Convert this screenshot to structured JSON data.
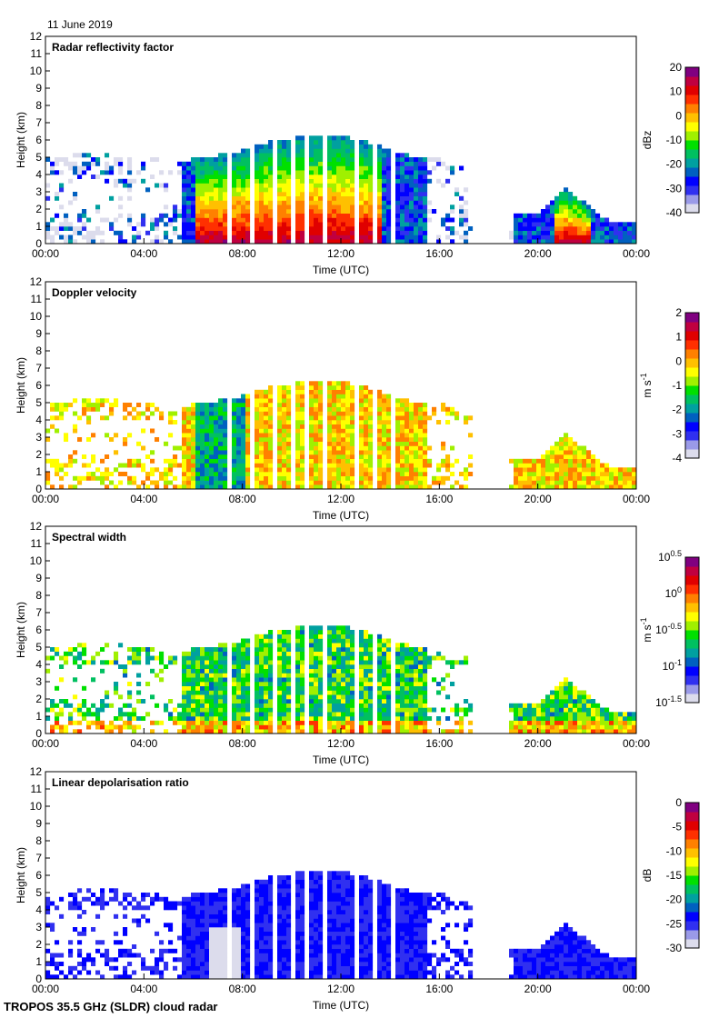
{
  "date": "11 June 2019",
  "footer": "TROPOS 35.5 GHz (SLDR) cloud radar",
  "chart_data": [
    {
      "type": "heatmap",
      "title": "Radar reflectivity factor",
      "xlabel": "Time (UTC)",
      "ylabel": "Height (km)",
      "xlim": [
        "00:00",
        "24:00"
      ],
      "ylim": [
        0,
        12
      ],
      "xticks": [
        "00:00",
        "04:00",
        "08:00",
        "12:00",
        "16:00",
        "20:00",
        "00:00"
      ],
      "yticks": [
        "0",
        "1",
        "2",
        "3",
        "4",
        "5",
        "6",
        "7",
        "8",
        "9",
        "10",
        "11",
        "12"
      ],
      "colorbar": {
        "label": "dBz",
        "ticks": [
          "20",
          "10",
          "0",
          "-10",
          "-20",
          "-30",
          "-40"
        ],
        "range": [
          -40,
          20
        ]
      }
    },
    {
      "type": "heatmap",
      "title": "Doppler velocity",
      "xlabel": "Time (UTC)",
      "ylabel": "Height (km)",
      "xlim": [
        "00:00",
        "24:00"
      ],
      "ylim": [
        0,
        12
      ],
      "xticks": [
        "00:00",
        "04:00",
        "08:00",
        "12:00",
        "16:00",
        "20:00",
        "00:00"
      ],
      "yticks": [
        "0",
        "1",
        "2",
        "3",
        "4",
        "5",
        "6",
        "7",
        "8",
        "9",
        "10",
        "11",
        "12"
      ],
      "colorbar": {
        "label": "m s-1",
        "ticks": [
          "2",
          "1",
          "0",
          "-1",
          "-2",
          "-3",
          "-4"
        ],
        "range": [
          -4,
          2
        ]
      }
    },
    {
      "type": "heatmap",
      "title": "Spectral width",
      "xlabel": "Time (UTC)",
      "ylabel": "Height (km)",
      "xlim": [
        "00:00",
        "24:00"
      ],
      "ylim": [
        0,
        12
      ],
      "xticks": [
        "00:00",
        "04:00",
        "08:00",
        "12:00",
        "16:00",
        "20:00",
        "00:00"
      ],
      "yticks": [
        "0",
        "1",
        "2",
        "3",
        "4",
        "5",
        "6",
        "7",
        "8",
        "9",
        "10",
        "11",
        "12"
      ],
      "colorbar": {
        "label": "m s-1",
        "ticks": [
          "10^0.5",
          "10^0",
          "10^-0.5",
          "10^-1",
          "10^-1.5"
        ],
        "range": [
          -1.5,
          0.5
        ],
        "scale": "log"
      }
    },
    {
      "type": "heatmap",
      "title": "Linear depolarisation ratio",
      "xlabel": "Time (UTC)",
      "ylabel": "Height (km)",
      "xlim": [
        "00:00",
        "24:00"
      ],
      "ylim": [
        0,
        12
      ],
      "xticks": [
        "00:00",
        "04:00",
        "08:00",
        "12:00",
        "16:00",
        "20:00",
        "00:00"
      ],
      "yticks": [
        "0",
        "1",
        "2",
        "3",
        "4",
        "5",
        "6",
        "7",
        "8",
        "9",
        "10",
        "11",
        "12"
      ],
      "colorbar": {
        "label": "dB",
        "ticks": [
          "0",
          "-5",
          "-10",
          "-15",
          "-20",
          "-25",
          "-30"
        ],
        "range": [
          -30,
          0
        ]
      }
    }
  ],
  "cloud_top_km": {
    "hours": [
      0,
      1,
      2,
      3,
      4,
      5,
      6,
      7,
      8,
      9,
      10,
      11,
      12,
      13,
      14,
      15,
      16,
      17,
      19,
      20,
      21,
      22,
      23,
      24
    ],
    "top": [
      5,
      5,
      5.2,
      5,
      5,
      4.5,
      4.8,
      5,
      5.3,
      5.8,
      6,
      6.2,
      6.1,
      5.8,
      5.3,
      4.8,
      4.8,
      4.3,
      1.5,
      1.7,
      3.2,
      2,
      1,
      1.3
    ]
  }
}
